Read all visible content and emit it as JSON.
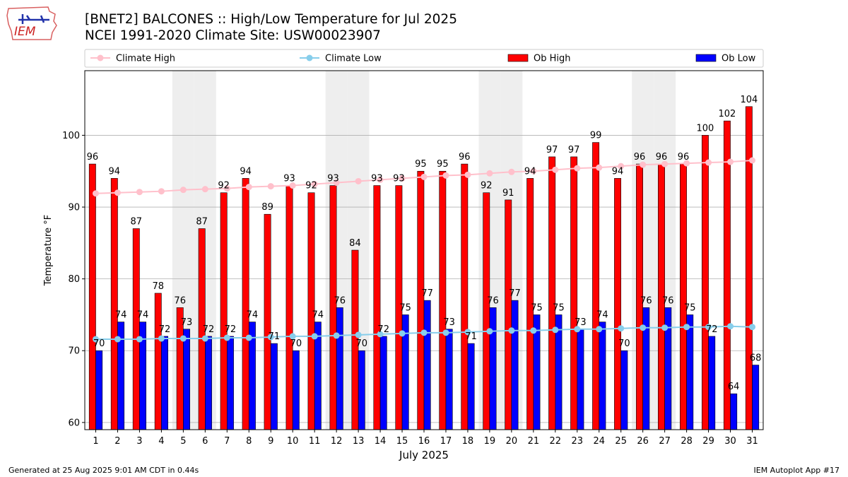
{
  "header": {
    "title": "[BNET2] BALCONES :: High/Low Temperature for Jul 2025",
    "subtitle": "NCEI 1991-2020 Climate Site: USW00023907"
  },
  "logo": {
    "text": "IEM",
    "icon": "iem-state-logo-icon"
  },
  "footer": {
    "left": "Generated at 25 Aug 2025 9:01 AM CDT in 0.44s",
    "right": "IEM Autoplot App #17"
  },
  "colors": {
    "ob_high": "#ff0000",
    "ob_low": "#0000ff",
    "climate_high": "#ffc0cb",
    "climate_low": "#87ceeb",
    "weekend_shade": "#eeeeee",
    "grid": "#b0b0b0"
  },
  "chart_data": {
    "type": "bar",
    "xlabel": "July 2025",
    "ylabel": "Temperature °F",
    "ylim": [
      59,
      109
    ],
    "yticks": [
      60,
      70,
      80,
      90,
      100
    ],
    "grid": "horizontal",
    "legend_position": "top",
    "categories": [
      "1",
      "2",
      "3",
      "4",
      "5",
      "6",
      "7",
      "8",
      "9",
      "10",
      "11",
      "12",
      "13",
      "14",
      "15",
      "16",
      "17",
      "18",
      "19",
      "20",
      "21",
      "22",
      "23",
      "24",
      "25",
      "26",
      "27",
      "28",
      "29",
      "30",
      "31"
    ],
    "shaded_days": [
      5,
      6,
      12,
      13,
      19,
      20,
      26,
      27
    ],
    "series": [
      {
        "name": "Climate High",
        "type": "line",
        "values": [
          91.9,
          92.0,
          92.1,
          92.2,
          92.4,
          92.5,
          92.6,
          92.8,
          92.9,
          93.0,
          93.2,
          93.4,
          93.6,
          93.8,
          94.0,
          94.2,
          94.4,
          94.5,
          94.7,
          94.9,
          95.0,
          95.2,
          95.4,
          95.5,
          95.7,
          95.9,
          96.0,
          96.1,
          96.2,
          96.3,
          96.5
        ]
      },
      {
        "name": "Climate Low",
        "type": "line",
        "values": [
          71.6,
          71.6,
          71.6,
          71.7,
          71.7,
          71.7,
          71.8,
          71.8,
          71.9,
          72.0,
          72.0,
          72.1,
          72.2,
          72.3,
          72.4,
          72.5,
          72.5,
          72.6,
          72.7,
          72.8,
          72.8,
          72.9,
          73.0,
          73.0,
          73.1,
          73.2,
          73.2,
          73.3,
          73.3,
          73.4,
          73.3
        ]
      },
      {
        "name": "Ob High",
        "type": "bar",
        "values": [
          96,
          94,
          87,
          78,
          76,
          87,
          92,
          94,
          89,
          93,
          92,
          93,
          84,
          93,
          93,
          95,
          95,
          96,
          92,
          91,
          94,
          97,
          97,
          99,
          94,
          96,
          96,
          96,
          100,
          102,
          104
        ]
      },
      {
        "name": "Ob Low",
        "type": "bar",
        "values": [
          70,
          74,
          74,
          72,
          73,
          72,
          72,
          74,
          71,
          70,
          74,
          76,
          70,
          72,
          75,
          77,
          73,
          71,
          76,
          77,
          75,
          75,
          73,
          74,
          70,
          76,
          76,
          75,
          72,
          64,
          68
        ]
      }
    ]
  }
}
